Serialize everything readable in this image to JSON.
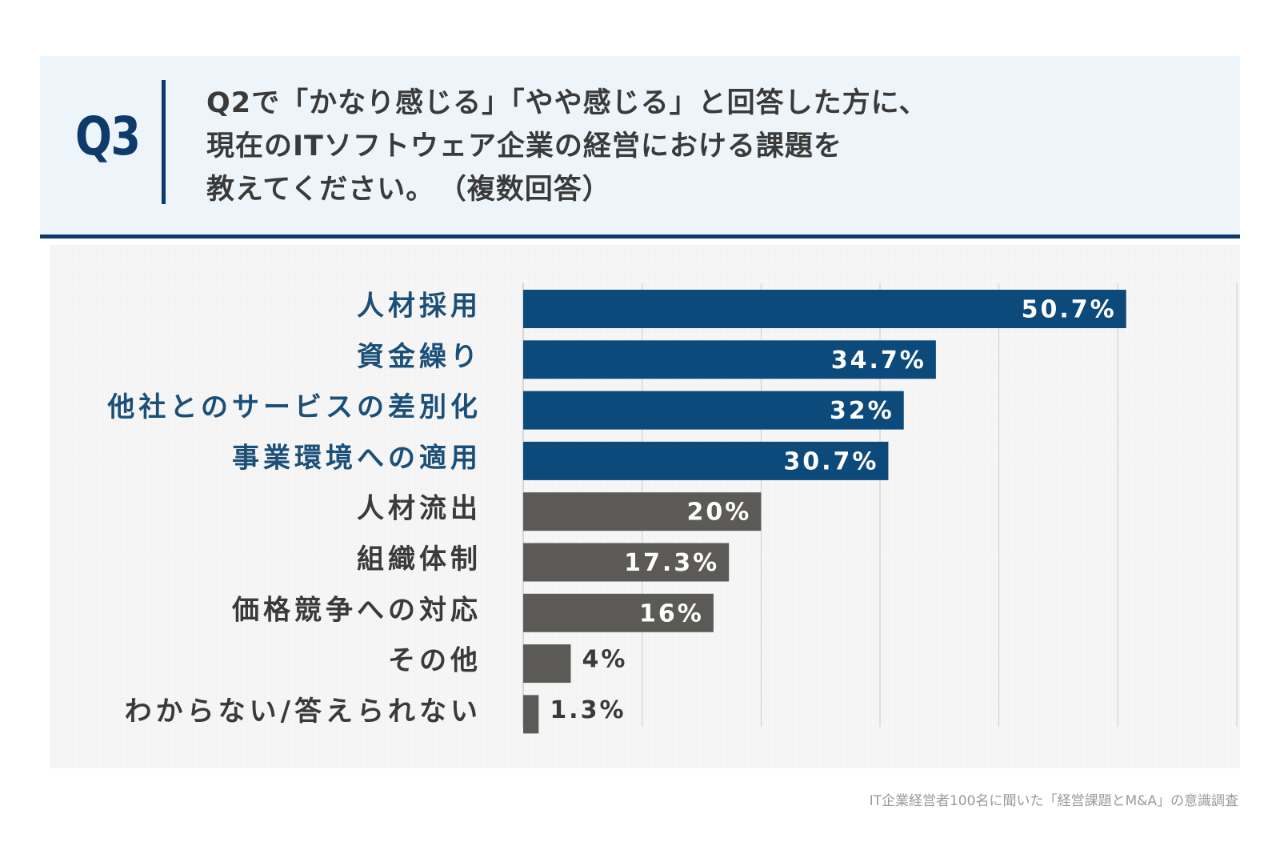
{
  "header": {
    "question_label": "Q3",
    "question_lines": [
      "Q2で「かなり感じる」「やや感じる」と回答した方に、",
      "現在のITソフトウェア企業の経営における課題を",
      "教えてください。"
    ],
    "question_note": "（複数回答）"
  },
  "chart_data": {
    "type": "bar",
    "orientation": "horizontal",
    "title": "現在のITソフトウェア企業の経営における課題（複数回答）",
    "categories": [
      "人材採用",
      "資金繰り",
      "他社とのサービスの差別化",
      "事業環境への適用",
      "人材流出",
      "組織体制",
      "価格競争への対応",
      "その他",
      "わからない/答えられない"
    ],
    "values": [
      50.7,
      34.7,
      32,
      30.7,
      20,
      17.3,
      16,
      4,
      1.3
    ],
    "data_labels": [
      "50.7%",
      "34.7%",
      "32%",
      "30.7%",
      "20%",
      "17.3%",
      "16%",
      "4%",
      "1.3%"
    ],
    "highlight_count": 4,
    "xlim": [
      0,
      60
    ],
    "grid": true,
    "xlabel": "",
    "ylabel": "",
    "colors": {
      "highlight": "#0d4a7c",
      "normal": "#5b5a56",
      "highlight_text": "#1b4f78",
      "normal_text": "#3a3a3a",
      "grid": "#cccccc"
    }
  },
  "footer": {
    "source": "IT企業経営者100名に聞いた「経営課題とM&A」の意識調査"
  }
}
